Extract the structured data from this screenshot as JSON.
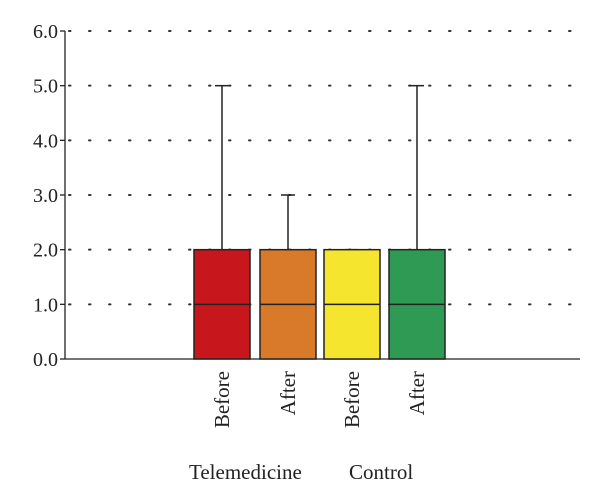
{
  "chart_data": {
    "type": "box",
    "ylim": [
      0,
      6
    ],
    "yticks": [
      "0.0",
      "1.0",
      "2.0",
      "3.0",
      "4.0",
      "5.0",
      "6.0"
    ],
    "grid": "dotted-horizontal",
    "categories": [
      "Before",
      "After",
      "Before",
      "After"
    ],
    "groups": [
      {
        "label": "Telemedicine",
        "categories": [
          0,
          1
        ]
      },
      {
        "label": "Control",
        "categories": [
          2,
          3
        ]
      }
    ],
    "boxes": [
      {
        "category": "Before",
        "min": 0,
        "q1": 0,
        "median": 1,
        "q3": 2,
        "max": 5,
        "color": "#c8161d"
      },
      {
        "category": "After",
        "min": 0,
        "q1": 0,
        "median": 1,
        "q3": 2,
        "max": 3,
        "color": "#d97a2b"
      },
      {
        "category": "Before",
        "min": 0,
        "q1": 0,
        "median": 1,
        "q3": 2,
        "max": 2,
        "color": "#f6e52f"
      },
      {
        "category": "After",
        "min": 0,
        "q1": 0,
        "median": 1,
        "q3": 2,
        "max": 5,
        "color": "#2e9a54"
      }
    ]
  }
}
